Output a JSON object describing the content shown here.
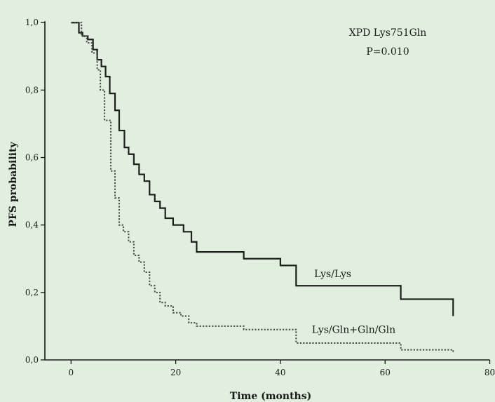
{
  "chart_data": {
    "type": "line",
    "title": "XPD Lys751Gln",
    "subtitle": "P=0.010",
    "xlabel": "Time (months)",
    "ylabel": "PFS probability",
    "xlim": [
      -5,
      81
    ],
    "ylim": [
      0,
      1.04
    ],
    "xticks": [
      0,
      20,
      40,
      60,
      80
    ],
    "x_tick_labels": [
      "0",
      "20",
      "40",
      "60",
      "80"
    ],
    "yticks": [
      0,
      0.2,
      0.4,
      0.6,
      0.8,
      1.0
    ],
    "y_tick_labels": [
      "0,0",
      "0,2",
      "0,4",
      "0,6",
      "0,8",
      "1,0"
    ],
    "grid": false,
    "series": [
      {
        "name": "Lys/Lys",
        "style": "solid",
        "color": "#1e1e1e",
        "x": [
          0,
          1.5,
          2.2,
          3.2,
          4.2,
          5.0,
          5.8,
          6.6,
          7.4,
          8.4,
          9.2,
          10.2,
          11.0,
          12.0,
          13.0,
          14.0,
          15.0,
          16.0,
          17.0,
          18.0,
          19.5,
          21.5,
          23.0,
          24.0,
          33.0,
          40.0,
          43.0,
          63.0,
          73.0
        ],
        "y": [
          1.0,
          0.97,
          0.96,
          0.95,
          0.92,
          0.89,
          0.87,
          0.84,
          0.79,
          0.74,
          0.68,
          0.63,
          0.61,
          0.58,
          0.55,
          0.53,
          0.49,
          0.47,
          0.45,
          0.42,
          0.4,
          0.38,
          0.35,
          0.32,
          0.3,
          0.28,
          0.22,
          0.18,
          0.13
        ]
      },
      {
        "name": "Lys/Gln+Gln/Gln",
        "style": "dotted",
        "color": "#4a4a4a",
        "x": [
          0,
          2.0,
          3.0,
          4.0,
          5.0,
          5.6,
          6.4,
          7.6,
          8.4,
          9.2,
          10.0,
          11.0,
          12.0,
          13.0,
          14.0,
          15.0,
          16.0,
          17.0,
          18.0,
          19.5,
          21.0,
          22.5,
          24.0,
          33.0,
          43.0,
          63.0,
          73.0
        ],
        "y": [
          1.0,
          0.96,
          0.94,
          0.91,
          0.86,
          0.8,
          0.71,
          0.56,
          0.48,
          0.4,
          0.38,
          0.35,
          0.31,
          0.29,
          0.26,
          0.22,
          0.2,
          0.17,
          0.16,
          0.14,
          0.13,
          0.11,
          0.1,
          0.09,
          0.05,
          0.03,
          0.02
        ]
      }
    ],
    "annotations": [
      {
        "text": "Lys/Lys",
        "x": 50,
        "y": 0.245
      },
      {
        "text": "Lys/Gln+Gln/Gln",
        "x": 54,
        "y": 0.08
      }
    ]
  }
}
